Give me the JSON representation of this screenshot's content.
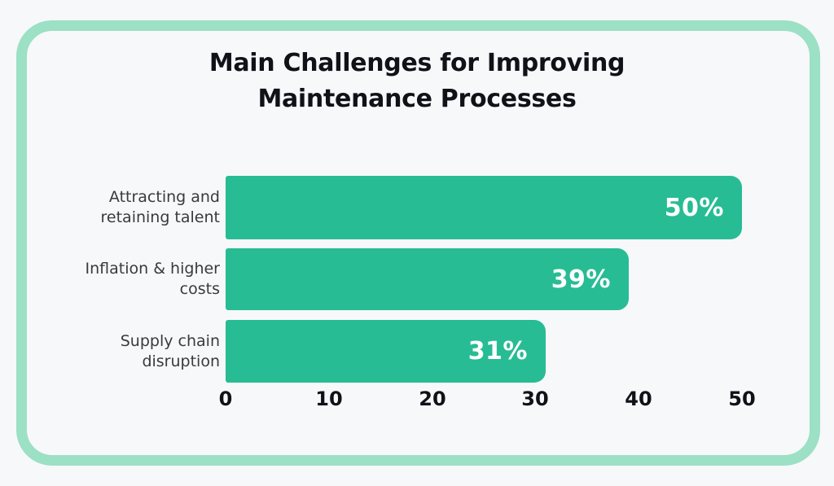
{
  "title": {
    "lines": [
      "Main Challenges for Improving",
      "Maintenance Processes"
    ]
  },
  "chart_data": {
    "type": "bar",
    "orientation": "horizontal",
    "title": "Main Challenges for Improving Maintenance Processes",
    "categories": [
      "Attracting and\nretaining talent",
      "Inflation & higher\ncosts",
      "Supply chain\ndisruption"
    ],
    "values": [
      50,
      39,
      31
    ],
    "value_labels": [
      "50%",
      "39%",
      "31%"
    ],
    "unit": "%",
    "xlim": [
      0,
      50
    ],
    "x_ticks": [
      0,
      10,
      20,
      30,
      40,
      50
    ],
    "grid": false,
    "legend": false,
    "bar_color": "#27BC94",
    "value_label_color": "#FFFFFF"
  },
  "colors": {
    "background": "#F7F8FA",
    "card_border": "#9CE0C5",
    "title_text": "#111118",
    "category_text": "#3A3A3E",
    "tick_text": "#111118"
  }
}
